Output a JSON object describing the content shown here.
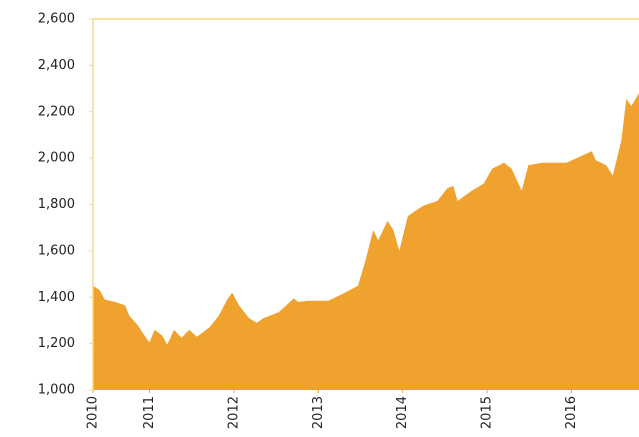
{
  "chart_data": {
    "type": "area",
    "color": "#f0a22e",
    "x": [
      2010.33,
      2010.41,
      2010.47,
      2010.59,
      2010.71,
      2010.76,
      2010.86,
      2010.94,
      2011.0,
      2011.06,
      2011.15,
      2011.21,
      2011.29,
      2011.38,
      2011.47,
      2011.56,
      2011.71,
      2011.82,
      2011.92,
      2011.98,
      2012.06,
      2012.18,
      2012.27,
      2012.35,
      2012.53,
      2012.71,
      2012.76,
      2012.88,
      2013.12,
      2013.29,
      2013.47,
      2013.56,
      2013.65,
      2013.71,
      2013.82,
      2013.89,
      2013.96,
      2014.06,
      2014.24,
      2014.41,
      2014.53,
      2014.6,
      2014.65,
      2014.82,
      2014.96,
      2015.06,
      2015.2,
      2015.29,
      2015.41,
      2015.49,
      2015.65,
      2015.94,
      2016.06,
      2016.24,
      2016.29,
      2016.41,
      2016.49,
      2016.59,
      2016.65,
      2016.71,
      2016.8
    ],
    "values": [
      1450,
      1430,
      1390,
      1380,
      1365,
      1320,
      1280,
      1235,
      1205,
      1260,
      1235,
      1195,
      1260,
      1225,
      1260,
      1230,
      1270,
      1320,
      1390,
      1420,
      1365,
      1310,
      1290,
      1310,
      1335,
      1395,
      1380,
      1385,
      1385,
      1415,
      1450,
      1560,
      1690,
      1645,
      1730,
      1690,
      1600,
      1750,
      1795,
      1815,
      1870,
      1880,
      1815,
      1860,
      1890,
      1955,
      1980,
      1955,
      1860,
      1970,
      1980,
      1980,
      2000,
      2030,
      1990,
      1970,
      1925,
      2075,
      2255,
      2225,
      2280
    ],
    "xlim": [
      2010.33,
      2016.8
    ],
    "xticks": [
      {
        "value": 2010.33,
        "label": "2010"
      },
      2011,
      2012,
      2013,
      2014,
      2015,
      2016
    ],
    "ylim": [
      1000,
      2600
    ],
    "yticks": [
      {
        "value": 1000,
        "label": "1,000"
      },
      {
        "value": 1200,
        "label": "1,200"
      },
      {
        "value": 1400,
        "label": "1,400"
      },
      {
        "value": 1600,
        "label": "1,600"
      },
      {
        "value": 1800,
        "label": "1,800"
      },
      {
        "value": 2000,
        "label": "2,000"
      },
      {
        "value": 2200,
        "label": "2,200"
      },
      {
        "value": 2400,
        "label": "2,400"
      },
      {
        "value": 2600,
        "label": "2,600"
      }
    ]
  }
}
